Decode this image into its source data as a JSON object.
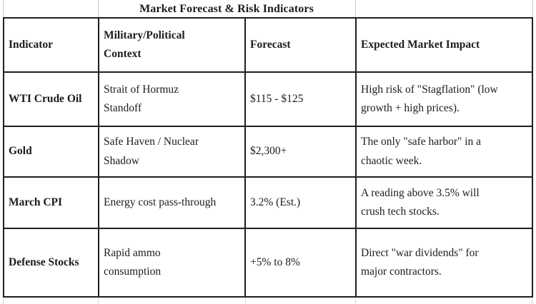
{
  "title": "Market Forecast & Risk Indicators",
  "table": {
    "headers": {
      "indicator": "Indicator",
      "context": "Military/Political\nContext",
      "forecast": "Forecast",
      "impact": "Expected Market Impact"
    },
    "rows": [
      {
        "indicator": "WTI Crude Oil",
        "context": "Strait of Hormuz\nStandoff",
        "forecast": "$115 - $125",
        "impact": "High risk of \"Stagflation\" (low\ngrowth + high prices)."
      },
      {
        "indicator": "Gold",
        "context": "Safe Haven / Nuclear\nShadow",
        "forecast": "$2,300+",
        "impact": "The only \"safe harbor\" in a\nchaotic week."
      },
      {
        "indicator": "March CPI",
        "context": "Energy cost pass-through",
        "forecast": "3.2% (Est.)",
        "impact": "A reading above 3.5% will\ncrush tech stocks."
      },
      {
        "indicator": "Defense Stocks",
        "context": "Rapid ammo\nconsumption",
        "forecast": "+5% to 8%",
        "impact": "Direct \"war dividends\" for\nmajor contractors."
      }
    ]
  },
  "colors": {
    "border": "#1f1f1f",
    "faint_line": "#c9c9c9",
    "text": "#1c1c1c",
    "background": "#ffffff"
  }
}
